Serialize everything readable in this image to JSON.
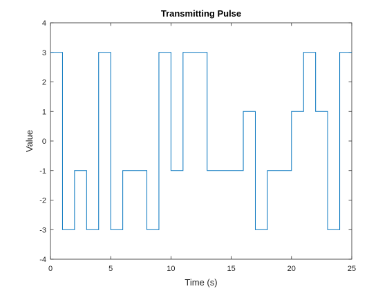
{
  "chart_data": {
    "type": "line",
    "step": "post",
    "title": "Transmitting Pulse",
    "xlabel": "Time (s)",
    "ylabel": "Value",
    "xlim": [
      0,
      25
    ],
    "ylim": [
      -4,
      4
    ],
    "xticks": [
      0,
      5,
      10,
      15,
      20,
      25
    ],
    "yticks": [
      -4,
      -3,
      -2,
      -1,
      0,
      1,
      2,
      3,
      4
    ],
    "grid": false,
    "series": [
      {
        "color": "#0072BD",
        "x": [
          0,
          1,
          2,
          3,
          4,
          5,
          6,
          7,
          8,
          9,
          10,
          11,
          12,
          13,
          14,
          15,
          16,
          17,
          18,
          19,
          20,
          21,
          22,
          23,
          24,
          25
        ],
        "y": [
          3,
          -3,
          -1,
          -3,
          3,
          -3,
          -1,
          -1,
          -3,
          3,
          -1,
          3,
          3,
          -1,
          -1,
          -1,
          1,
          -3,
          -1,
          -1,
          1,
          3,
          1,
          -3,
          3,
          3
        ]
      }
    ]
  }
}
